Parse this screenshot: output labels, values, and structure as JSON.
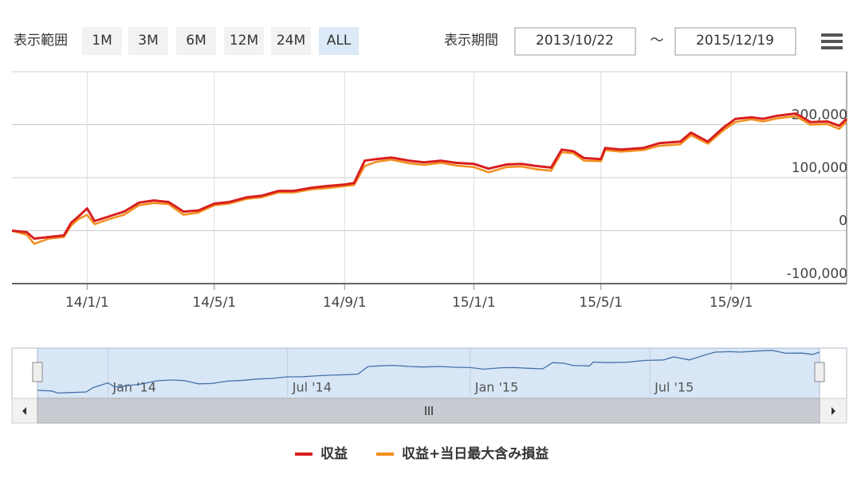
{
  "ui": {
    "range_label": "表示範囲",
    "range_buttons": [
      "1M",
      "3M",
      "6M",
      "12M",
      "24M",
      "ALL"
    ],
    "selected_range": "ALL",
    "period_label": "表示期間",
    "start_date": "2013/10/22",
    "separator": "～",
    "end_date": "2015/12/19"
  },
  "chart_data": {
    "type": "line",
    "x": [
      "2013-10-22",
      "2013-11-05",
      "2013-11-12",
      "2013-11-26",
      "2013-12-10",
      "2013-12-17",
      "2013-12-24",
      "2014-01-01",
      "2014-01-08",
      "2014-01-22",
      "2014-02-05",
      "2014-02-19",
      "2014-03-05",
      "2014-03-19",
      "2014-04-02",
      "2014-04-16",
      "2014-05-01",
      "2014-05-15",
      "2014-06-01",
      "2014-06-15",
      "2014-07-01",
      "2014-07-15",
      "2014-08-01",
      "2014-08-15",
      "2014-09-01",
      "2014-09-10",
      "2014-09-20",
      "2014-10-01",
      "2014-10-15",
      "2014-11-01",
      "2014-11-15",
      "2014-12-01",
      "2014-12-15",
      "2015-01-01",
      "2015-01-15",
      "2015-02-01",
      "2015-02-15",
      "2015-03-01",
      "2015-03-15",
      "2015-03-25",
      "2015-04-05",
      "2015-04-15",
      "2015-05-01",
      "2015-05-05",
      "2015-05-20",
      "2015-06-10",
      "2015-06-25",
      "2015-07-15",
      "2015-07-25",
      "2015-08-10",
      "2015-08-25",
      "2015-09-05",
      "2015-09-20",
      "2015-10-01",
      "2015-10-15",
      "2015-11-01",
      "2015-11-15",
      "2015-12-01",
      "2015-12-12",
      "2015-12-19"
    ],
    "series": [
      {
        "name": "収益+当日最大含み損益",
        "color": "#f28f1c",
        "values": [
          0,
          -8000,
          -25000,
          -15000,
          -12000,
          10000,
          22000,
          30000,
          12000,
          22000,
          30000,
          48000,
          52000,
          50000,
          30000,
          34000,
          48000,
          51000,
          60000,
          63000,
          72000,
          72000,
          78000,
          80000,
          84000,
          86000,
          122000,
          130000,
          134000,
          127000,
          124000,
          128000,
          123000,
          120000,
          110000,
          120000,
          121000,
          116000,
          113000,
          148000,
          146000,
          132000,
          131000,
          152000,
          149000,
          152000,
          160000,
          163000,
          180000,
          164000,
          190000,
          205000,
          210000,
          206000,
          212000,
          216000,
          200000,
          201000,
          192000,
          206000
        ]
      },
      {
        "name": "収益",
        "color": "#d81e1e",
        "values": [
          0,
          -3000,
          -15000,
          -12000,
          -9000,
          15000,
          27000,
          42000,
          18000,
          27000,
          36000,
          53000,
          57000,
          54000,
          36000,
          38000,
          51000,
          54000,
          63000,
          66000,
          75000,
          75000,
          81000,
          84000,
          87000,
          90000,
          132000,
          135000,
          138000,
          132000,
          129000,
          132000,
          128000,
          126000,
          117000,
          125000,
          126000,
          122000,
          119000,
          153000,
          150000,
          137000,
          135000,
          156000,
          153000,
          156000,
          165000,
          168000,
          185000,
          168000,
          195000,
          211000,
          214000,
          211000,
          217000,
          221000,
          205000,
          206000,
          198000,
          211000
        ]
      }
    ],
    "xlim": [
      "2013-10-22",
      "2015-12-19"
    ],
    "xticks": [
      {
        "value": "2014-01-01",
        "label": "14/1/1"
      },
      {
        "value": "2014-05-01",
        "label": "14/5/1"
      },
      {
        "value": "2014-09-01",
        "label": "14/9/1"
      },
      {
        "value": "2015-01-01",
        "label": "15/1/1"
      },
      {
        "value": "2015-05-01",
        "label": "15/5/1"
      },
      {
        "value": "2015-09-01",
        "label": "15/9/1"
      }
    ],
    "ylim": [
      -100000,
      300000
    ],
    "yticks": [
      {
        "value": -100000,
        "label": "-100,000"
      },
      0,
      {
        "value": 100000,
        "label": "100,000"
      },
      {
        "value": 200000,
        "label": "200,000"
      }
    ],
    "grid": true,
    "navigator_xticks": [
      {
        "value": "2014-01-01",
        "label": "Jan '14"
      },
      {
        "value": "2014-07-01",
        "label": "Jul '14"
      },
      {
        "value": "2015-01-01",
        "label": "Jan '15"
      },
      {
        "value": "2015-07-01",
        "label": "Jul '15"
      }
    ],
    "legend": "bottom"
  }
}
